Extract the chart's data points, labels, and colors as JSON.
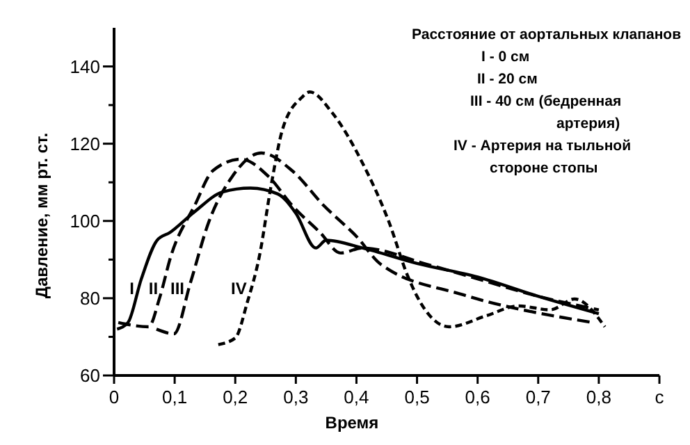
{
  "chart_data": {
    "type": "line",
    "xlabel": "Время",
    "ylabel": "Давление, мм рт. ст.",
    "xlim": [
      0,
      0.9
    ],
    "ylim": [
      60,
      150
    ],
    "xticks": [
      {
        "value": 0,
        "label": "0"
      },
      {
        "value": 0.1,
        "label": "0,1"
      },
      {
        "value": 0.2,
        "label": "0,2"
      },
      {
        "value": 0.3,
        "label": "0,3"
      },
      {
        "value": 0.4,
        "label": "0,4"
      },
      {
        "value": 0.5,
        "label": "0,5"
      },
      {
        "value": 0.6,
        "label": "0,6"
      },
      {
        "value": 0.7,
        "label": "0,7"
      },
      {
        "value": 0.8,
        "label": "0,8"
      },
      {
        "value": 0.9,
        "label": "с"
      }
    ],
    "yticks": [
      60,
      {
        "value": 70,
        "label": null
      },
      80,
      {
        "value": 90,
        "label": null
      },
      100,
      {
        "value": 110,
        "label": null
      },
      120,
      {
        "value": 130,
        "label": null
      },
      140
    ],
    "grid": false,
    "marker": "none",
    "series": [
      {
        "name": "I",
        "color": "#000000",
        "line_style": "solid",
        "x": [
          0.005,
          0.023,
          0.045,
          0.071,
          0.092,
          0.133,
          0.179,
          0.225,
          0.27,
          0.3,
          0.333,
          0.35,
          0.41,
          0.5,
          0.6,
          0.7,
          0.8
        ],
        "values": [
          72,
          73.7,
          85,
          95,
          97,
          102.4,
          107.5,
          108.5,
          107,
          102,
          93,
          95,
          93,
          89,
          85.5,
          80.5,
          76
        ]
      },
      {
        "name": "II",
        "color": "#000000",
        "line_style": "dashed",
        "x": [
          0.007,
          0.057,
          0.075,
          0.094,
          0.133,
          0.163,
          0.209,
          0.255,
          0.294,
          0.34,
          0.374,
          0.41,
          0.516,
          0.6,
          0.7,
          0.8
        ],
        "values": [
          73.7,
          72.6,
          80,
          91,
          104,
          113,
          116,
          111.5,
          104,
          97,
          91.7,
          93,
          88.8,
          85,
          80.5,
          77
        ]
      },
      {
        "name": "III",
        "color": "#000000",
        "line_style": "dashed",
        "x": [
          0.07,
          0.099,
          0.126,
          0.156,
          0.195,
          0.243,
          0.294,
          0.346,
          0.4,
          0.44,
          0.576,
          0.79
        ],
        "values": [
          72,
          70.8,
          84,
          99.6,
          111.5,
          117.6,
          113,
          104,
          96,
          88.8,
          80.9,
          73.7
        ]
      },
      {
        "name": "IV",
        "color": "#000000",
        "line_style": "dotted",
        "x": [
          0.172,
          0.2,
          0.22,
          0.24,
          0.259,
          0.278,
          0.31,
          0.323,
          0.36,
          0.41,
          0.454,
          0.484,
          0.5,
          0.553,
          0.615,
          0.667,
          0.72,
          0.76,
          0.81
        ],
        "values": [
          68,
          69.7,
          79,
          91,
          109,
          123.7,
          132,
          133.4,
          128,
          115,
          99.6,
          86,
          80.5,
          72.6,
          75.5,
          78,
          77,
          79.8,
          72.6
        ]
      }
    ],
    "annotations": [
      "Расстояние от аортальных клапанов",
      "I - 0 см",
      "II - 20 см",
      "III - 40 см  (бедренная",
      "артерия)",
      "IV - Артерия на тыльной",
      "стороне стопы"
    ]
  }
}
